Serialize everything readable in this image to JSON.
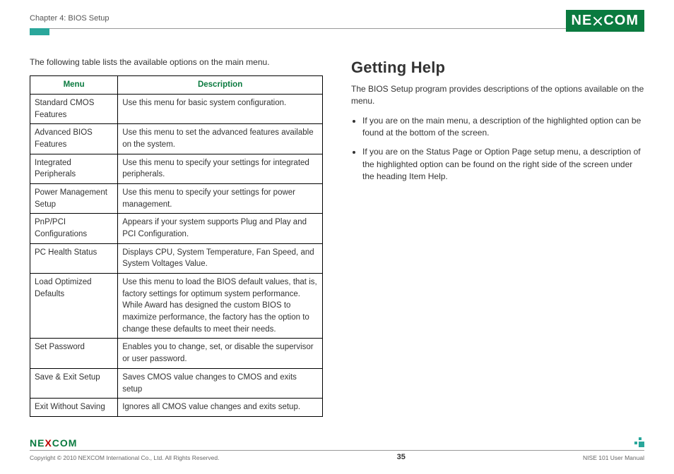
{
  "chapter": "Chapter 4: BIOS Setup",
  "logo": {
    "left": "NE",
    "right": "COM"
  },
  "left_col": {
    "intro": "The following table lists the available options on the main menu.",
    "headers": {
      "menu": "Menu",
      "desc": "Description"
    },
    "rows": [
      {
        "menu": "Standard CMOS Features",
        "desc": "Use this menu for basic system configuration."
      },
      {
        "menu": "Advanced BIOS Features",
        "desc": "Use this menu to set the advanced features available on the system."
      },
      {
        "menu": "Integrated Peripherals",
        "desc": "Use this menu to specify your settings for integrated peripherals."
      },
      {
        "menu": "Power Management Setup",
        "desc": "Use this menu to specify your settings for power management."
      },
      {
        "menu": "PnP/PCI Configurations",
        "desc": "Appears if your system supports Plug and Play and PCI Configuration."
      },
      {
        "menu": "PC Health Status",
        "desc": "Displays CPU, System Temperature, Fan Speed, and System Voltages Value."
      },
      {
        "menu": "Load Optimized Defaults",
        "desc": "Use this menu to load the BIOS default values, that is, factory settings for optimum system performance. While Award has designed the custom BIOS to maximize performance, the factory has the option to change these defaults to meet their needs."
      },
      {
        "menu": "Set Password",
        "desc": "Enables you to change, set, or disable the supervisor or user password."
      },
      {
        "menu": "Save & Exit Setup",
        "desc": "Saves CMOS value changes to CMOS and exits setup"
      },
      {
        "menu": "Exit Without Saving",
        "desc": "Ignores all CMOS value changes and exits setup."
      }
    ]
  },
  "right_col": {
    "heading": "Getting Help",
    "para": "The BIOS Setup program provides descriptions of the options available on the menu.",
    "bullets": [
      "If you are on the main menu, a description of the highlighted option can be found at the bottom of the screen.",
      "If you are on the Status Page or Option Page setup menu, a description of the highlighted option can be found on the right side of the screen under the heading Item Help."
    ]
  },
  "footer": {
    "copyright": "Copyright © 2010 NEXCOM International Co., Ltd. All Rights Reserved.",
    "page_num": "35",
    "doc": "NISE 101 User Manual",
    "logo": {
      "left": "NE",
      "mid": "X",
      "right": "COM"
    }
  },
  "colors": {
    "brand_green": "#0a7a3f",
    "teal": "#2aa79b",
    "text": "#333333",
    "rule": "#999999"
  }
}
